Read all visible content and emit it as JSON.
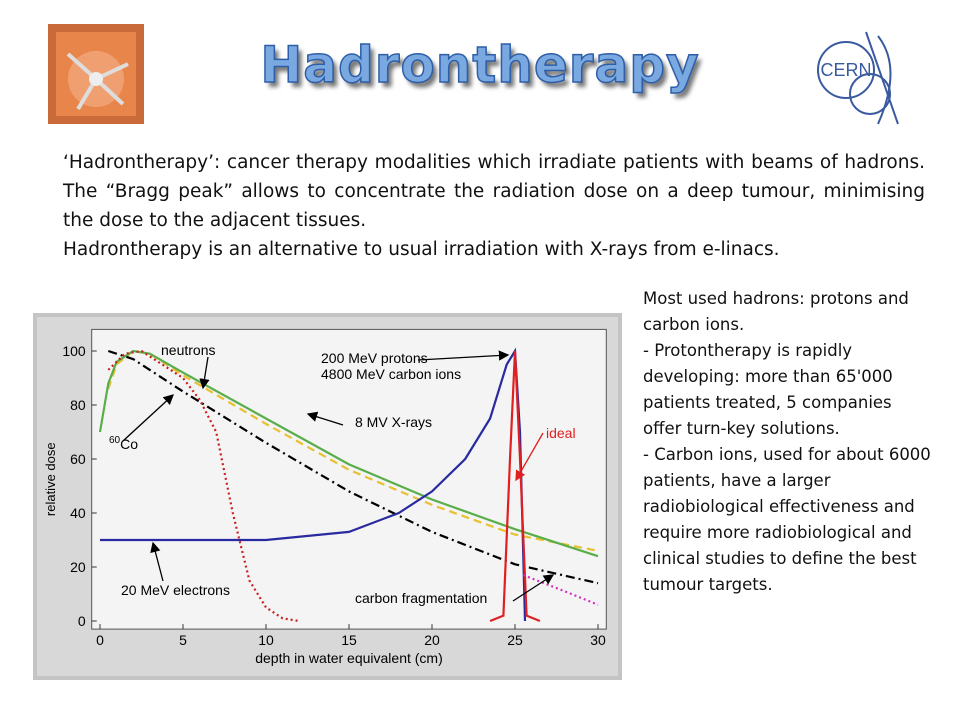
{
  "header": {
    "title": "Hadrontherapy",
    "logo": "CERN"
  },
  "intro": [
    "‘Hadrontherapy’: cancer therapy modalities which irradiate patients with beams of hadrons. The “Bragg peak” allows to concentrate the radiation dose on a deep tumour, minimising the dose to the adjacent tissues.",
    "Hadrontherapy is an alternative to usual irradiation with X-rays from e-linacs."
  ],
  "sidebar": [
    "Most used hadrons: protons and carbon ions.",
    "- Protontherapy is rapidly developing: more than 65'000 patients treated, 5 companies offer turn-key solutions.",
    "- Carbon ions, used for about 6000 patients, have a larger radiobiological effectiveness and require more radiobiological and clinical studies to define the best tumour targets."
  ],
  "chart_data": {
    "type": "line",
    "x_label": "depth in water equivalent (cm)",
    "y_label": "relative dose",
    "xlim": [
      -0.5,
      30.5
    ],
    "ylim": [
      -3,
      108
    ],
    "xticks": [
      0,
      5,
      10,
      15,
      20,
      25,
      30
    ],
    "yticks": [
      0,
      20,
      40,
      60,
      80,
      100
    ],
    "series": [
      {
        "color": "#e8c030",
        "style": "dashed",
        "x": [
          0.5,
          1,
          2,
          3,
          5,
          10,
          15,
          20,
          25,
          30
        ],
        "values": [
          86,
          95,
          100,
          99,
          91,
          73,
          56,
          43,
          32,
          26
        ]
      },
      {
        "color": "#5aae4a",
        "style": "solid",
        "x": [
          0,
          0.5,
          1,
          2,
          3,
          5,
          10,
          15,
          20,
          25,
          30
        ],
        "values": [
          70,
          88,
          96,
          100,
          99,
          92,
          75,
          58,
          45,
          34,
          24
        ]
      },
      {
        "color": "#000000",
        "style": "dashdot",
        "x": [
          0.5,
          2,
          5,
          10,
          15,
          20,
          25,
          30
        ],
        "values": [
          100,
          97,
          85,
          66,
          48,
          33,
          21,
          14
        ]
      },
      {
        "color": "#cc2020",
        "style": "dotted",
        "x": [
          0.5,
          1.5,
          2.5,
          5,
          6,
          7,
          8,
          9,
          10,
          11,
          12
        ],
        "values": [
          93,
          99,
          100,
          90,
          82,
          70,
          40,
          15,
          5,
          1,
          0
        ]
      },
      {
        "color": "#2a2aa0",
        "style": "solid",
        "x": [
          0,
          5,
          10,
          15,
          18,
          20,
          22,
          23.5,
          24.5,
          25,
          25.3,
          25.6
        ],
        "values": [
          30,
          30,
          30,
          33,
          40,
          48,
          60,
          75,
          95,
          100,
          70,
          0
        ]
      },
      {
        "color": "#e02020",
        "style": "solid",
        "x": [
          23.5,
          24.3,
          24.7,
          25,
          25.3,
          25.7,
          26.5
        ],
        "values": [
          0,
          2,
          60,
          100,
          60,
          2,
          0
        ]
      },
      {
        "color": "#d030c0",
        "style": "dotted",
        "x": [
          25.5,
          28,
          30
        ],
        "values": [
          17,
          11,
          6
        ]
      }
    ],
    "annotations": [
      "neutrons",
      "200 MeV protons",
      "4800 MeV carbon ions",
      "8 MV X-rays",
      "ideal",
      {
        "sup": "60",
        "text": "Co"
      },
      "20 MeV electrons",
      "carbon fragmentation"
    ]
  }
}
